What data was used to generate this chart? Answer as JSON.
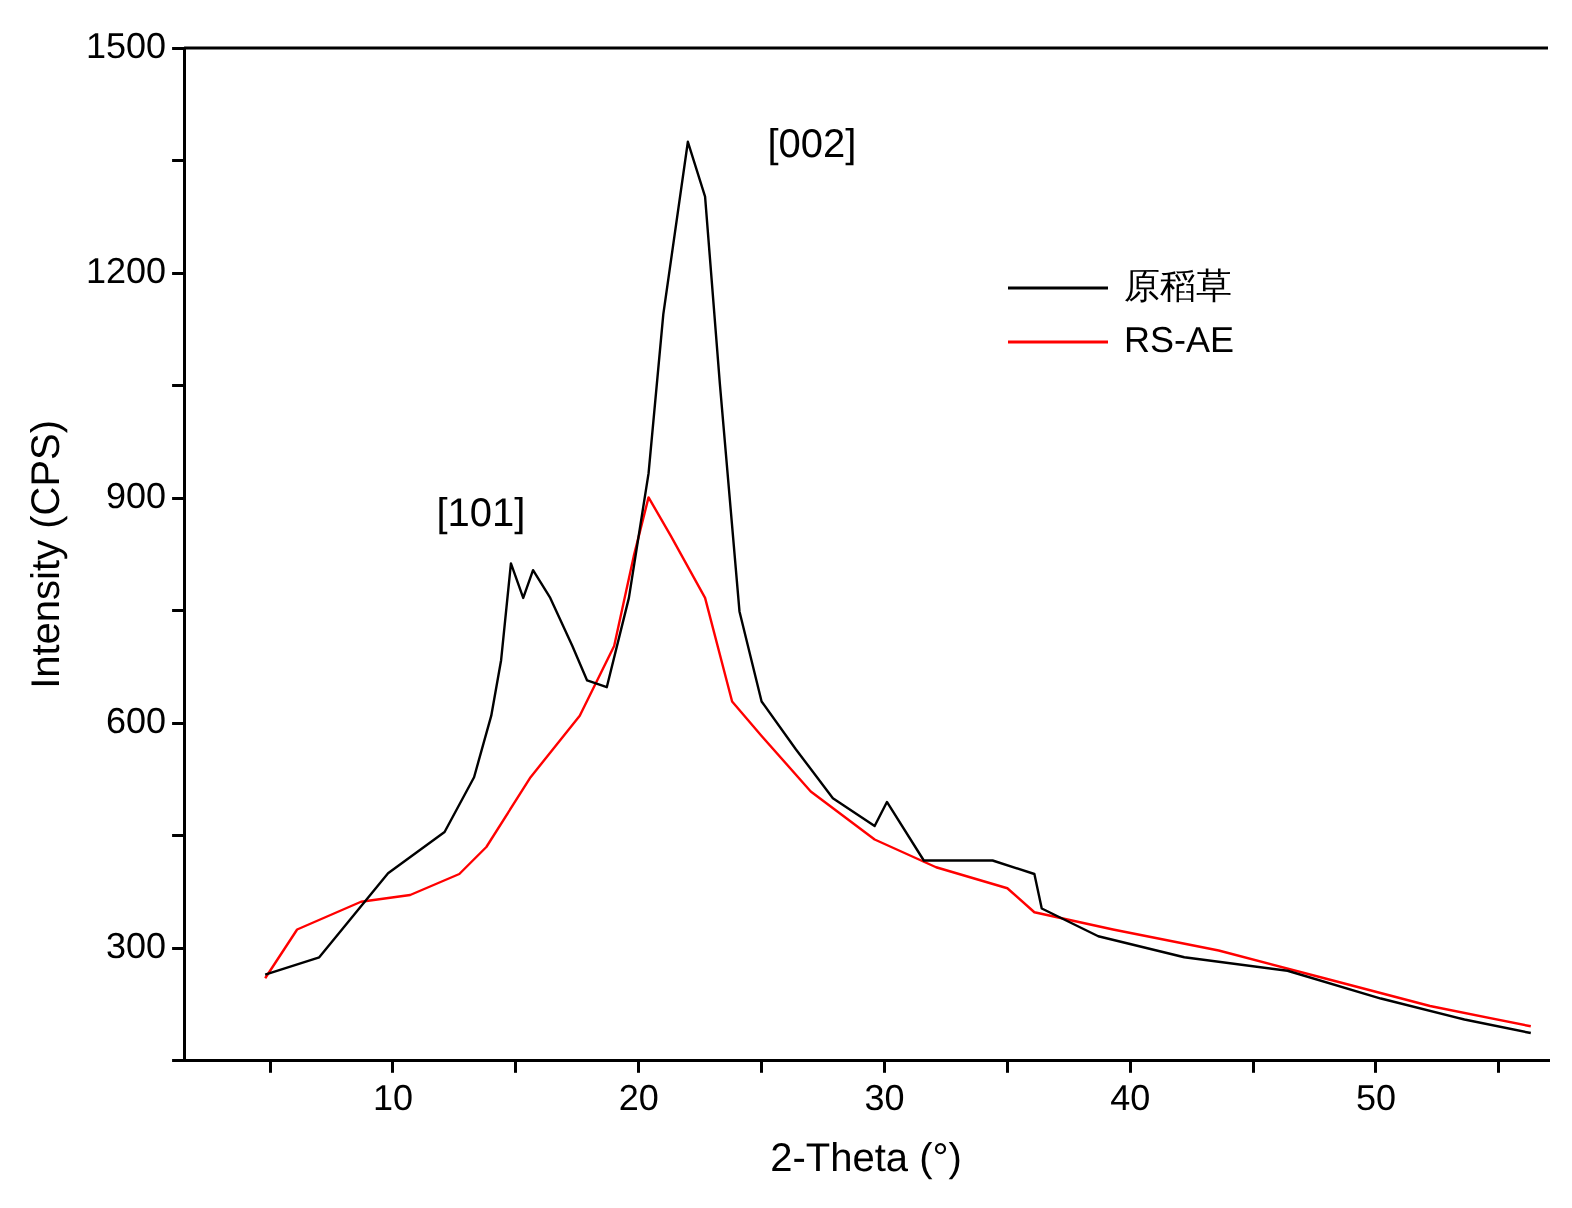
{
  "chart_data": {
    "type": "line",
    "xlabel": "2-Theta (°)",
    "ylabel": "Intensity (CPS)",
    "xlim": [
      1.5,
      57
    ],
    "ylim": [
      150,
      1500
    ],
    "xticks": [
      {
        "value": 5,
        "label": null
      },
      10,
      {
        "value": 15,
        "label": null
      },
      20,
      {
        "value": 25,
        "label": null
      },
      30,
      {
        "value": 35,
        "label": null
      },
      40,
      {
        "value": 45,
        "label": null
      },
      50,
      {
        "value": 55,
        "label": null
      }
    ],
    "yticks": [
      {
        "value": 150,
        "label": null
      },
      300,
      {
        "value": 450,
        "label": null
      },
      600,
      {
        "value": 750,
        "label": null
      },
      900,
      {
        "value": 1050,
        "label": null
      },
      1200,
      {
        "value": 1350,
        "label": null
      },
      1500
    ],
    "grid": false,
    "legend": "top right",
    "marker": "none",
    "line_style": "solid",
    "annotations": [
      {
        "text": "[101]",
        "x": 14.8,
        "y": 813
      },
      {
        "text": "[002]",
        "x": 22,
        "y": 1375
      }
    ],
    "series": [
      {
        "name": "原稻草",
        "color": "#000000",
        "x": [
          4.8,
          7,
          9.8,
          12.1,
          13.3,
          14,
          14.4,
          14.8,
          15.3,
          15.7,
          16.4,
          17.3,
          17.9,
          18.7,
          19.6,
          20.4,
          21,
          22,
          22.7,
          23.3,
          24.1,
          25,
          26.4,
          27.9,
          29.6,
          30.1,
          31.6,
          34.4,
          36.1,
          36.4,
          38.7,
          42.2,
          46.4,
          50.2,
          53.6,
          56.3
        ],
        "values": [
          265,
          288,
          400,
          455,
          528,
          610,
          684,
          813,
          767,
          804,
          767,
          703,
          657,
          648,
          767,
          933,
          1145,
          1375,
          1302,
          1053,
          749,
          629,
          565,
          500,
          463,
          495,
          417,
          417,
          399,
          353,
          316,
          288,
          270,
          233,
          205,
          187
        ]
      },
      {
        "name": "RS-AE",
        "color": "#ff0000",
        "x": [
          4.8,
          6.1,
          8.7,
          10.7,
          12.7,
          13.8,
          15.6,
          17.6,
          19,
          19.8,
          20.4,
          21.3,
          22.7,
          23.8,
          25,
          27,
          29.6,
          32.1,
          35,
          36.1,
          39.3,
          43.6,
          47.9,
          52.2,
          56.3
        ],
        "values": [
          260,
          325,
          362,
          371,
          399,
          435,
          528,
          610,
          703,
          823,
          901,
          850,
          767,
          629,
          583,
          509,
          445,
          408,
          380,
          348,
          325,
          297,
          260,
          223,
          196
        ]
      }
    ]
  }
}
